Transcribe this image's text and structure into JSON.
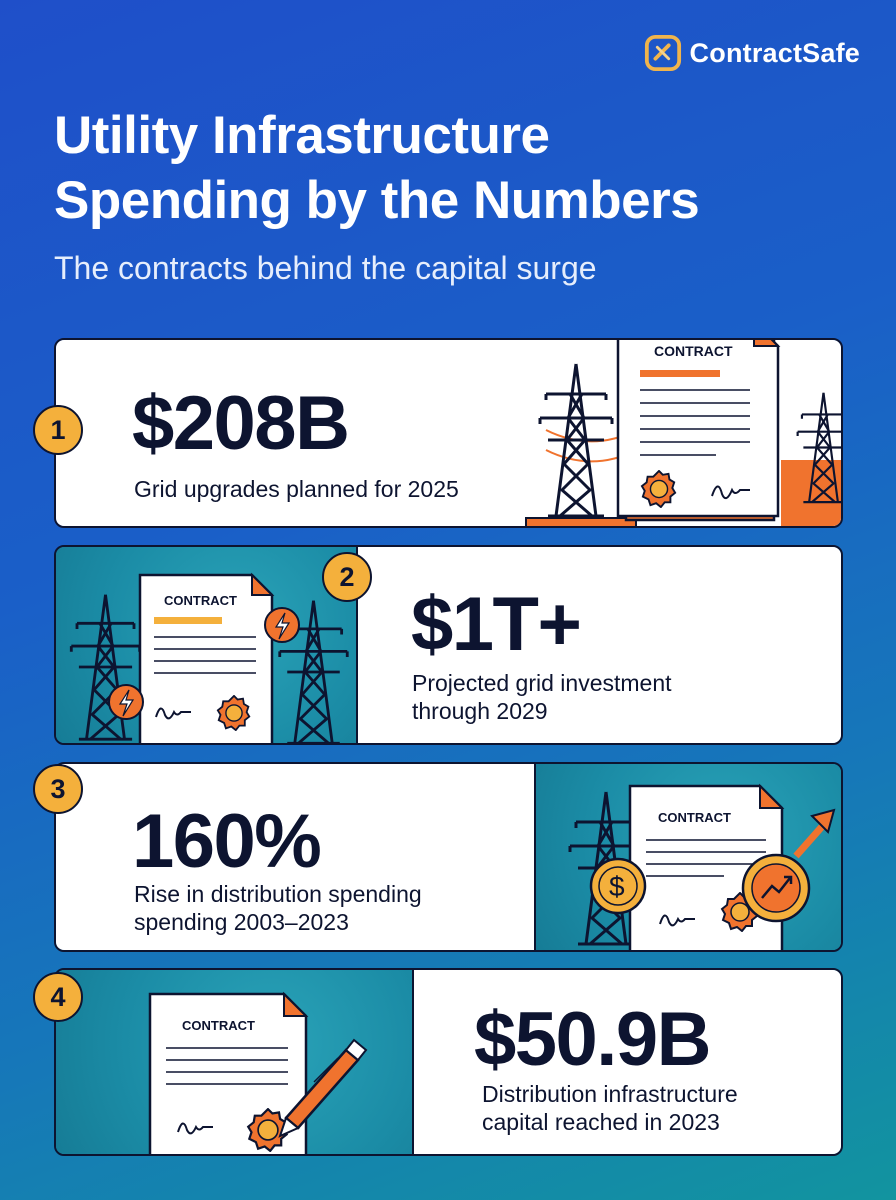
{
  "brand": {
    "name": "ContractSafe"
  },
  "header": {
    "title_line1": "Utility Infrastructure",
    "title_line2": "Spending by the Numbers",
    "subtitle": "The contracts behind the capital surge"
  },
  "stats": [
    {
      "number": "1",
      "value": "$208B",
      "desc_line1": "Grid upgrades planned for 2025",
      "desc_line2": ""
    },
    {
      "number": "2",
      "value": "$1T+",
      "desc_line1": "Projected grid investment",
      "desc_line2": "through 2029"
    },
    {
      "number": "3",
      "value": "160%",
      "desc_line1": "Rise in distribution spending",
      "desc_line2": "spending 2003–2023"
    },
    {
      "number": "4",
      "value": "$50.9B",
      "desc_line1": "Distribution infrastructure",
      "desc_line2": "capital reached in 2023"
    }
  ],
  "illustration": {
    "contract_label": "CONTRACT",
    "coin_symbol": "$"
  },
  "colors": {
    "accent_orange": "#f0732e",
    "badge_yellow": "#f4b03c",
    "navy": "#0d1430",
    "teal": "#1b8ca6"
  },
  "icons": [
    "contractsafe-logo-icon",
    "transmission-tower-icon",
    "contract-document-icon",
    "seal-icon",
    "lightning-icon",
    "dollar-coin-icon",
    "growth-arrow-icon",
    "pen-icon"
  ]
}
